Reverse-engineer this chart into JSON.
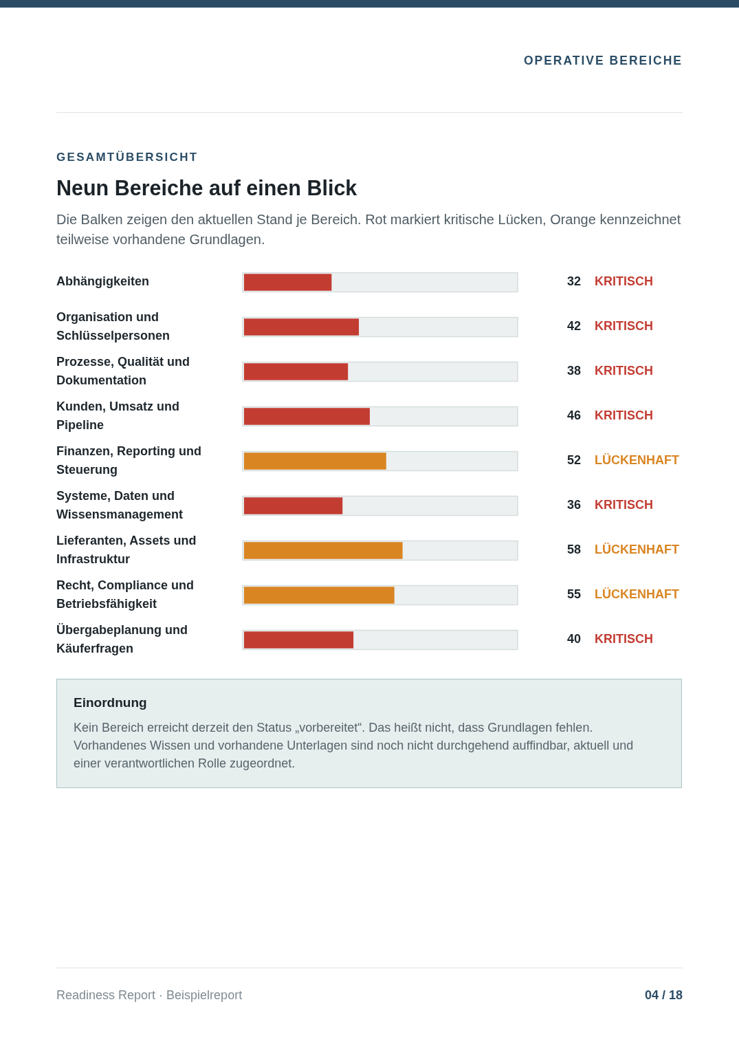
{
  "chart_data": {
    "type": "bar",
    "orientation": "horizontal",
    "title": "Neun Bereiche auf einen Blick",
    "subtitle": "Die Balken zeigen den aktuellen Stand je Bereich. Rot markiert kritische Lücken, Orange kennzeichnet teilweise vorhandene Grundlagen.",
    "categories": [
      "Abhängigkeiten",
      "Organisation und Schlüsselpersonen",
      "Prozesse, Qualität und Dokumentation",
      "Kunden, Umsatz und Pipeline",
      "Finanzen, Reporting und Steuerung",
      "Systeme, Daten und Wissensmanagement",
      "Lieferanten, Assets und Infrastruktur",
      "Recht, Compliance und Betriebsfähigkeit",
      "Übergabeplanung und Käuferfragen"
    ],
    "values": [
      32,
      42,
      38,
      46,
      52,
      36,
      58,
      55,
      40
    ],
    "colors": [
      "#c33c32",
      "#c33c32",
      "#c33c32",
      "#c33c32",
      "#d98522",
      "#c33c32",
      "#d98522",
      "#d98522",
      "#c33c32"
    ],
    "xlim": [
      0,
      100
    ],
    "tick_labels": "y",
    "data_labels": true,
    "annotations": [
      "OPERATIVE BEREICHE",
      "GESAMTÜBERSICHT",
      "KRITISCH",
      "KRITISCH",
      "KRITISCH",
      "KRITISCH",
      "LÜCKENHAFT",
      "KRITISCH",
      "LÜCKENHAFT",
      "LÜCKENHAFT",
      "KRITISCH",
      "Einordnung",
      "Kein Bereich erreicht derzeit den Status „vorbereitet“. Das heißt nicht, dass Grundlagen fehlen. Vorhandenes Wissen und vorhandene Unterlagen sind noch nicht durchgehend auffindbar, aktuell und einer verantwortlichen Rolle zugeordnet.",
      "Readiness Report · Beispielreport",
      "04 / 18"
    ]
  }
}
